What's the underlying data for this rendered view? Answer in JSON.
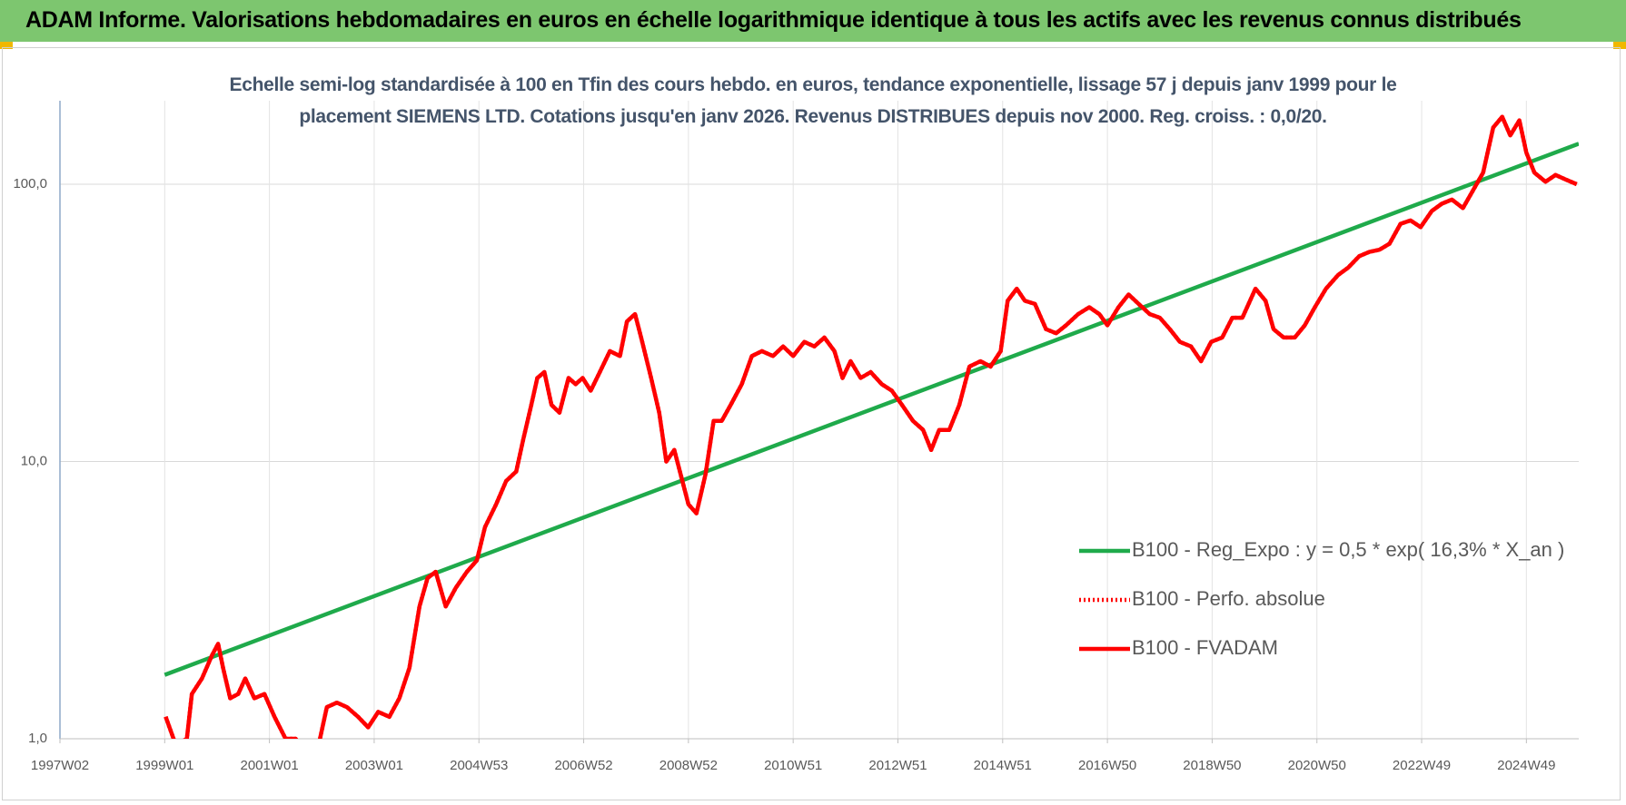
{
  "header": {
    "title": "ADAM Informe. Valorisations hebdomadaires en euros en échelle logarithmique identique à tous les actifs avec les revenus connus distribués"
  },
  "chart_data": {
    "type": "line",
    "title": "Echelle semi-log standardisée à 100 en Tfin des cours hebdo. en euros, tendance exponentielle, lissage 57 j depuis janv 1999 pour le placement SIEMENS LTD. Cotations jusqu'en janv 2026. Revenus DISTRIBUES depuis nov 2000. Reg. croiss. : 0,0/20.",
    "log_y": true,
    "grid": true,
    "legend": "lower right",
    "xlim": [
      0,
      1508
    ],
    "xticks": [
      {
        "value": 0,
        "label": "1997W02"
      },
      {
        "value": 104,
        "label": "1999W01"
      },
      {
        "value": 208,
        "label": "2001W01"
      },
      {
        "value": 312,
        "label": "2003W01"
      },
      {
        "value": 416,
        "label": "2004W53"
      },
      {
        "value": 520,
        "label": "2006W52"
      },
      {
        "value": 624,
        "label": "2008W52"
      },
      {
        "value": 728,
        "label": "2010W51"
      },
      {
        "value": 832,
        "label": "2012W51"
      },
      {
        "value": 936,
        "label": "2014W51"
      },
      {
        "value": 1040,
        "label": "2016W50"
      },
      {
        "value": 1144,
        "label": "2018W50"
      },
      {
        "value": 1248,
        "label": "2020W50"
      },
      {
        "value": 1352,
        "label": "2022W49"
      },
      {
        "value": 1456,
        "label": "2024W49"
      }
    ],
    "ylim": [
      1,
      200
    ],
    "yticks": [
      {
        "value": 1,
        "label": "1,0"
      },
      {
        "value": 10,
        "label": "10,0"
      },
      {
        "value": 100,
        "label": "100,0"
      }
    ],
    "series": [
      {
        "name": "B100 - Reg_Expo : y = 0,5 * exp( 16,3% *  X_an )",
        "color": "#1faa4b",
        "style": "solid",
        "x": [
          104,
          1508
        ],
        "values": [
          1.7,
          140
        ]
      },
      {
        "name": "B100 - Perfo. absolue",
        "color": "#ff0000",
        "style": "dotted",
        "x": [
          105,
          115,
          126,
          131,
          141,
          151,
          157,
          162,
          169,
          177,
          184,
          193,
          203,
          213,
          224,
          234,
          244,
          254,
          265,
          275,
          285,
          296,
          306,
          316,
          327,
          337,
          347,
          357,
          365,
          373,
          383,
          393,
          404,
          414,
          422,
          433,
          443,
          453,
          460,
          468,
          474,
          481,
          488,
          496,
          505,
          512,
          519,
          527,
          536,
          546,
          556,
          563,
          571,
          577,
          587,
          595,
          602,
          610,
          618,
          624,
          632,
          641,
          649,
          657,
          666,
          677,
          687,
          697,
          708,
          718,
          728,
          739,
          749,
          759,
          769,
          777,
          785,
          795,
          805,
          816,
          826,
          836,
          847,
          857,
          865,
          873,
          883,
          893,
          903,
          914,
          924,
          934,
          941,
          950,
          958,
          968,
          979,
          989,
          999,
          1011,
          1022,
          1032,
          1040,
          1051,
          1061,
          1071,
          1082,
          1092,
          1102,
          1112,
          1123,
          1133,
          1143,
          1154,
          1164,
          1174,
          1187,
          1197,
          1205,
          1215,
          1226,
          1236,
          1246,
          1257,
          1269,
          1279,
          1290,
          1300,
          1310,
          1320,
          1331,
          1341,
          1351,
          1362,
          1372,
          1382,
          1393,
          1403,
          1413,
          1423,
          1432,
          1440,
          1449,
          1456,
          1464,
          1475,
          1485,
          1495,
          1506
        ],
        "values": [
          1.2,
          0.95,
          1.0,
          1.45,
          1.65,
          2.0,
          2.2,
          1.8,
          1.4,
          1.45,
          1.65,
          1.4,
          1.45,
          1.2,
          1.0,
          1.0,
          0.9,
          0.85,
          1.3,
          1.35,
          1.3,
          1.2,
          1.1,
          1.25,
          1.2,
          1.4,
          1.8,
          3.0,
          3.8,
          4.0,
          3.0,
          3.5,
          4.0,
          4.4,
          5.8,
          7.0,
          8.5,
          9.2,
          12,
          16,
          20,
          21,
          16,
          15,
          20,
          19,
          20,
          18,
          21,
          25,
          24,
          32,
          34,
          28,
          20,
          15,
          10,
          11,
          8.5,
          7,
          6.5,
          9,
          14,
          14,
          16,
          19,
          24,
          25,
          24,
          26,
          24,
          27,
          26,
          28,
          25,
          20,
          23,
          20,
          21,
          19,
          18,
          16,
          14,
          13,
          11,
          13,
          13,
          16,
          22,
          23,
          22,
          25,
          38,
          42,
          38,
          37,
          30,
          29,
          31,
          34,
          36,
          34,
          31,
          36,
          40,
          37,
          34,
          33,
          30,
          27,
          26,
          23,
          27,
          28,
          33,
          33,
          42,
          38,
          30,
          28,
          28,
          31,
          36,
          42,
          47,
          50,
          55,
          57,
          58,
          61,
          72,
          74,
          70,
          80,
          85,
          88,
          82,
          95,
          110,
          160,
          175,
          150,
          170,
          130,
          110,
          102,
          108,
          104,
          100
        ]
      },
      {
        "name": "B100 - FVADAM",
        "color": "#ff0000",
        "style": "solid",
        "x": [
          105,
          115,
          126,
          131,
          141,
          151,
          157,
          162,
          169,
          177,
          184,
          193,
          203,
          213,
          224,
          234,
          244,
          254,
          265,
          275,
          285,
          296,
          306,
          316,
          327,
          337,
          347,
          357,
          365,
          373,
          383,
          393,
          404,
          414,
          422,
          433,
          443,
          453,
          460,
          468,
          474,
          481,
          488,
          496,
          505,
          512,
          519,
          527,
          536,
          546,
          556,
          563,
          571,
          577,
          587,
          595,
          602,
          610,
          618,
          624,
          632,
          641,
          649,
          657,
          666,
          677,
          687,
          697,
          708,
          718,
          728,
          739,
          749,
          759,
          769,
          777,
          785,
          795,
          805,
          816,
          826,
          836,
          847,
          857,
          865,
          873,
          883,
          893,
          903,
          914,
          924,
          934,
          941,
          950,
          958,
          968,
          979,
          989,
          999,
          1011,
          1022,
          1032,
          1040,
          1051,
          1061,
          1071,
          1082,
          1092,
          1102,
          1112,
          1123,
          1133,
          1143,
          1154,
          1164,
          1174,
          1187,
          1197,
          1205,
          1215,
          1226,
          1236,
          1246,
          1257,
          1269,
          1279,
          1290,
          1300,
          1310,
          1320,
          1331,
          1341,
          1351,
          1362,
          1372,
          1382,
          1393,
          1403,
          1413,
          1423,
          1432,
          1440,
          1449,
          1456,
          1464,
          1475,
          1485,
          1495,
          1506
        ],
        "values": [
          1.2,
          0.95,
          1.0,
          1.45,
          1.65,
          2.0,
          2.2,
          1.8,
          1.4,
          1.45,
          1.65,
          1.4,
          1.45,
          1.2,
          1.0,
          1.0,
          0.9,
          0.85,
          1.3,
          1.35,
          1.3,
          1.2,
          1.1,
          1.25,
          1.2,
          1.4,
          1.8,
          3.0,
          3.8,
          4.0,
          3.0,
          3.5,
          4.0,
          4.4,
          5.8,
          7.0,
          8.5,
          9.2,
          12,
          16,
          20,
          21,
          16,
          15,
          20,
          19,
          20,
          18,
          21,
          25,
          24,
          32,
          34,
          28,
          20,
          15,
          10,
          11,
          8.5,
          7,
          6.5,
          9,
          14,
          14,
          16,
          19,
          24,
          25,
          24,
          26,
          24,
          27,
          26,
          28,
          25,
          20,
          23,
          20,
          21,
          19,
          18,
          16,
          14,
          13,
          11,
          13,
          13,
          16,
          22,
          23,
          22,
          25,
          38,
          42,
          38,
          37,
          30,
          29,
          31,
          34,
          36,
          34,
          31,
          36,
          40,
          37,
          34,
          33,
          30,
          27,
          26,
          23,
          27,
          28,
          33,
          33,
          42,
          38,
          30,
          28,
          28,
          31,
          36,
          42,
          47,
          50,
          55,
          57,
          58,
          61,
          72,
          74,
          70,
          80,
          85,
          88,
          82,
          95,
          110,
          160,
          175,
          150,
          170,
          130,
          110,
          102,
          108,
          104,
          100
        ]
      }
    ]
  }
}
